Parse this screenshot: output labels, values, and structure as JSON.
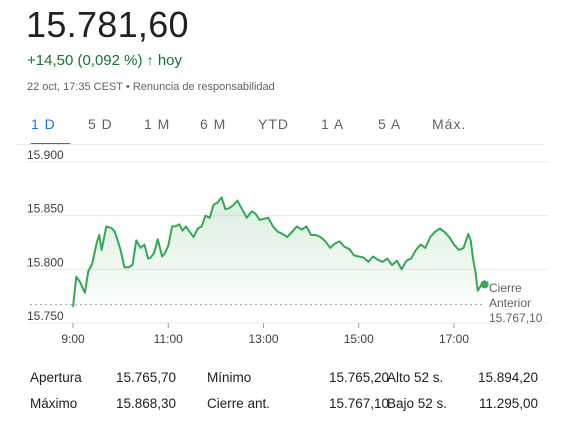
{
  "header": {
    "price": "15.781,60",
    "change": "+14,50 (0,092 %)",
    "change_arrow": "↑",
    "change_period": "hoy",
    "timestamp": "22 oct, 17:35 CEST",
    "separator": "•",
    "disclaimer": "Renuncia de responsabilidad"
  },
  "tabs": [
    "1 D",
    "5 D",
    "1 M",
    "6 M",
    "YTD",
    "1 A",
    "5 A",
    "Máx."
  ],
  "active_tab": "1 D",
  "colors": {
    "line": "#34a853",
    "fill": "#34a853",
    "positive": "#137333",
    "accent": "#1a73e8"
  },
  "chart_data": {
    "type": "area",
    "ylim": [
      15750,
      15900
    ],
    "y_ticks": [
      15900,
      15850,
      15800,
      15750
    ],
    "y_tick_labels": [
      "15.900",
      "15.850",
      "15.800",
      "15.750"
    ],
    "xlim": [
      9.0,
      18.0
    ],
    "x_ticks": [
      9,
      11,
      13,
      15,
      17
    ],
    "x_tick_labels": [
      "9:00",
      "11:00",
      "13:00",
      "15:00",
      "17:00"
    ],
    "previous_close": 15767.1,
    "previous_close_label": [
      "Cierre",
      "Anterior"
    ],
    "previous_close_value": "15.767,10",
    "series": [
      {
        "x": [
          9.0,
          9.07,
          9.15,
          9.25,
          9.32,
          9.4,
          9.5,
          9.55,
          9.6,
          9.7,
          9.77,
          9.82,
          9.88,
          9.93,
          10.0,
          10.08,
          10.17,
          10.25,
          10.33,
          10.42,
          10.5,
          10.58,
          10.63,
          10.7,
          10.78,
          10.87,
          10.93,
          11.0,
          11.08,
          11.15,
          11.23,
          11.3,
          11.37,
          11.45,
          11.53,
          11.62,
          11.7,
          11.78,
          11.87,
          11.95,
          12.03,
          12.12,
          12.2,
          12.28,
          12.37,
          12.45,
          12.55,
          12.65,
          12.75,
          12.83,
          12.92,
          13.0,
          13.1,
          13.2,
          13.3,
          13.4,
          13.5,
          13.6,
          13.7,
          13.8,
          13.9,
          14.0,
          14.1,
          14.2,
          14.3,
          14.4,
          14.5,
          14.6,
          14.7,
          14.8,
          14.9,
          15.0,
          15.1,
          15.2,
          15.3,
          15.4,
          15.5,
          15.6,
          15.7,
          15.8,
          15.9,
          16.0,
          16.1,
          16.2,
          16.3,
          16.4,
          16.5,
          16.6,
          16.7,
          16.8,
          16.9,
          17.0,
          17.1,
          17.2,
          17.3,
          17.35,
          17.4,
          17.45,
          17.5,
          17.58
        ],
        "y": [
          15765,
          15793,
          15788,
          15778,
          15798,
          15805,
          15825,
          15832,
          15818,
          15840,
          15839,
          15838,
          15835,
          15828,
          15818,
          15802,
          15802,
          15804,
          15827,
          15820,
          15823,
          15810,
          15811,
          15815,
          15828,
          15812,
          15815,
          15822,
          15840,
          15840,
          15842,
          15836,
          15840,
          15835,
          15830,
          15838,
          15840,
          15850,
          15848,
          15860,
          15862,
          15867,
          15856,
          15857,
          15860,
          15864,
          15856,
          15848,
          15854,
          15852,
          15846,
          15847,
          15848,
          15840,
          15835,
          15833,
          15830,
          15835,
          15840,
          15837,
          15840,
          15832,
          15832,
          15830,
          15826,
          15820,
          15824,
          15826,
          15821,
          15819,
          15813,
          15812,
          15811,
          15807,
          15812,
          15809,
          15807,
          15810,
          15804,
          15808,
          15800,
          15808,
          15810,
          15818,
          15823,
          15820,
          15830,
          15835,
          15838,
          15835,
          15830,
          15823,
          15818,
          15820,
          15833,
          15827,
          15810,
          15798,
          15780,
          15786
        ]
      }
    ]
  },
  "stats": [
    {
      "label": "Apertura",
      "value": "15.765,70"
    },
    {
      "label": "Mínimo",
      "value": "15.765,20"
    },
    {
      "label": "Alto 52 s.",
      "value": "15.894,20"
    },
    {
      "label": "Máximo",
      "value": "15.868,30"
    },
    {
      "label": "Cierre ant.",
      "value": "15.767,10"
    },
    {
      "label": "Bajo 52 s.",
      "value": "11.295,00"
    }
  ]
}
